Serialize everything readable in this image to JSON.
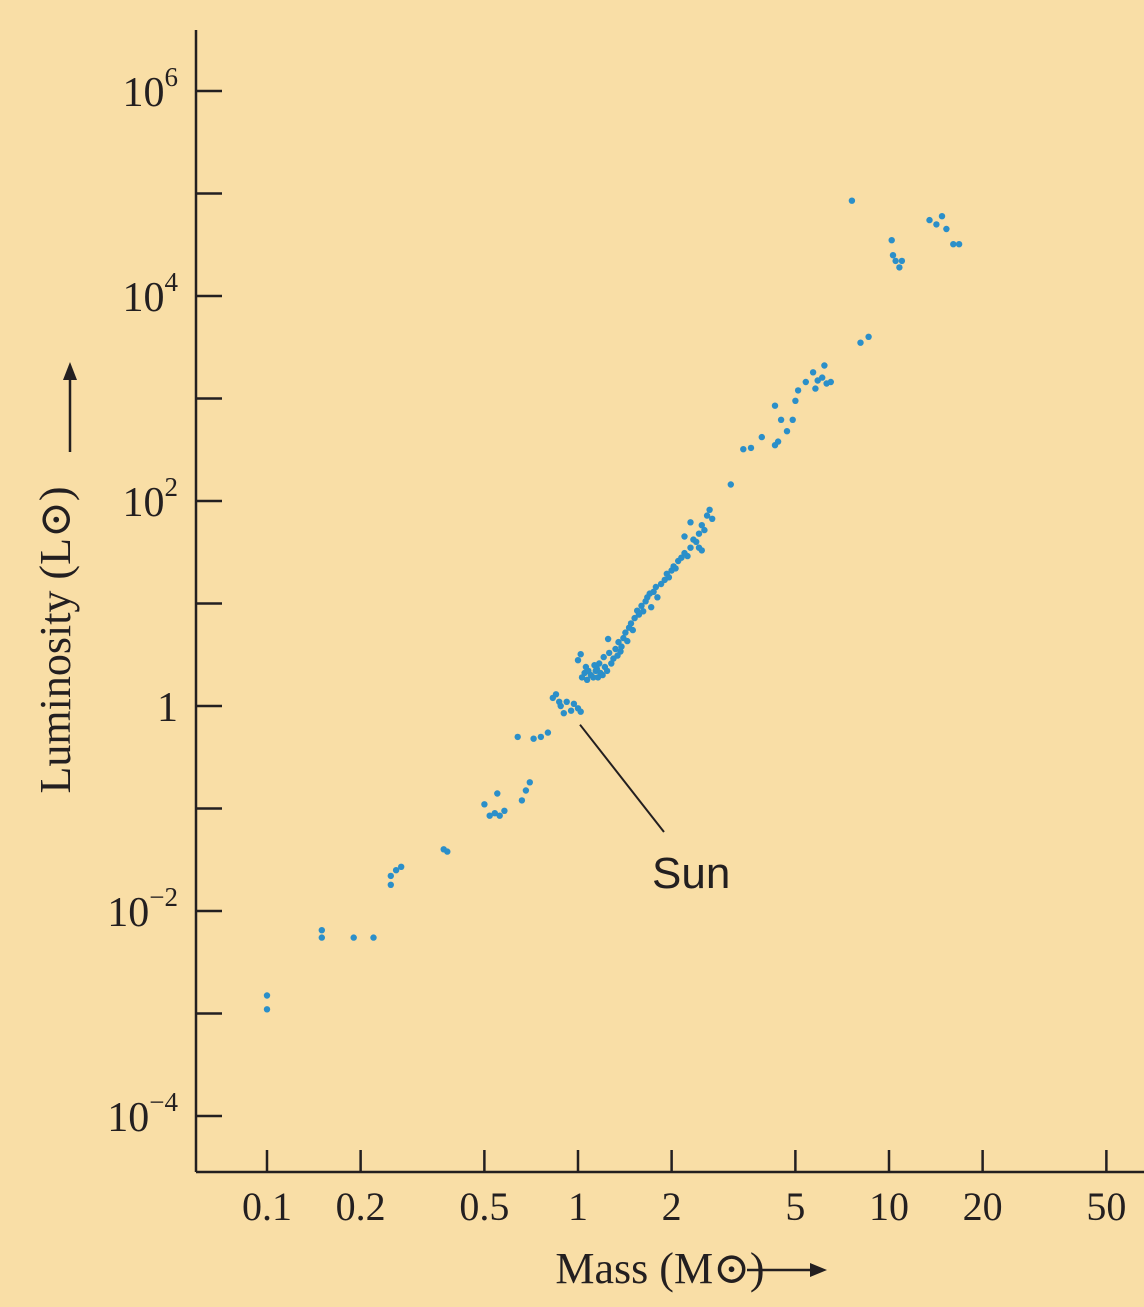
{
  "chart_data": {
    "type": "scatter",
    "title": "",
    "xlabel": "Mass (M⊙)",
    "ylabel": "Luminosity (L⊙)",
    "x_scale": "log",
    "y_scale": "log",
    "xlim": [
      0.066,
      60
    ],
    "ylim": [
      3e-05,
      4000000
    ],
    "grid": false,
    "x_ticks": [
      {
        "value": 0.1,
        "label": "0.1"
      },
      {
        "value": 0.2,
        "label": "0.2"
      },
      {
        "value": 0.5,
        "label": "0.5"
      },
      {
        "value": 1,
        "label": "1"
      },
      {
        "value": 2,
        "label": "2"
      },
      {
        "value": 5,
        "label": "5"
      },
      {
        "value": 10,
        "label": "10"
      },
      {
        "value": 20,
        "label": "20"
      },
      {
        "value": 50,
        "label": "50"
      }
    ],
    "y_ticks": [
      {
        "value": 0.0001,
        "base": "10",
        "exp": "−4"
      },
      {
        "value": 0.001,
        "base": "",
        "exp": ""
      },
      {
        "value": 0.01,
        "base": "10",
        "exp": "−2"
      },
      {
        "value": 0.1,
        "base": "",
        "exp": ""
      },
      {
        "value": 1,
        "base": "1",
        "exp": ""
      },
      {
        "value": 10,
        "base": "",
        "exp": ""
      },
      {
        "value": 100,
        "base": "10",
        "exp": "2"
      },
      {
        "value": 1000,
        "base": "",
        "exp": ""
      },
      {
        "value": 10000,
        "base": "10",
        "exp": "4"
      },
      {
        "value": 100000,
        "base": "",
        "exp": ""
      },
      {
        "value": 1000000,
        "base": "10",
        "exp": "6"
      }
    ],
    "annotation": {
      "text": "Sun",
      "x": 1.0,
      "y": 0.9
    },
    "colors": {
      "background": "#f9dea6",
      "point": "#2b8fc9",
      "axis": "#231f20"
    },
    "points": [
      [
        0.1,
        0.0015
      ],
      [
        0.1,
        0.0011
      ],
      [
        0.15,
        0.0065
      ],
      [
        0.15,
        0.0055
      ],
      [
        0.19,
        0.0055
      ],
      [
        0.22,
        0.0055
      ],
      [
        0.25,
        0.018
      ],
      [
        0.26,
        0.025
      ],
      [
        0.25,
        0.022
      ],
      [
        0.27,
        0.027
      ],
      [
        0.37,
        0.04
      ],
      [
        0.38,
        0.038
      ],
      [
        0.5,
        0.11
      ],
      [
        0.52,
        0.085
      ],
      [
        0.54,
        0.09
      ],
      [
        0.56,
        0.085
      ],
      [
        0.58,
        0.095
      ],
      [
        0.55,
        0.14
      ],
      [
        0.66,
        0.12
      ],
      [
        0.68,
        0.15
      ],
      [
        0.7,
        0.18
      ],
      [
        0.64,
        0.5
      ],
      [
        0.72,
        0.48
      ],
      [
        0.76,
        0.5
      ],
      [
        0.8,
        0.55
      ],
      [
        0.83,
        1.2
      ],
      [
        0.85,
        1.3
      ],
      [
        0.88,
        1.0
      ],
      [
        0.9,
        0.85
      ],
      [
        0.92,
        1.1
      ],
      [
        0.95,
        0.9
      ],
      [
        0.97,
        1.05
      ],
      [
        1.0,
        0.95
      ],
      [
        1.02,
        0.88
      ],
      [
        0.87,
        1.1
      ],
      [
        1.0,
        2.8
      ],
      [
        1.02,
        3.2
      ],
      [
        1.03,
        1.9
      ],
      [
        1.05,
        2.1
      ],
      [
        1.06,
        2.4
      ],
      [
        1.07,
        1.8
      ],
      [
        1.08,
        2.2
      ],
      [
        1.1,
        2.0
      ],
      [
        1.12,
        1.9
      ],
      [
        1.13,
        2.5
      ],
      [
        1.14,
        2.2
      ],
      [
        1.15,
        2.3
      ],
      [
        1.16,
        1.9
      ],
      [
        1.17,
        2.6
      ],
      [
        1.18,
        2.1
      ],
      [
        1.2,
        2.0
      ],
      [
        1.21,
        3.0
      ],
      [
        1.22,
        2.4
      ],
      [
        1.24,
        2.2
      ],
      [
        1.25,
        4.5
      ],
      [
        1.26,
        3.3
      ],
      [
        1.28,
        2.6
      ],
      [
        1.3,
        2.9
      ],
      [
        1.32,
        3.6
      ],
      [
        1.34,
        3.1
      ],
      [
        1.35,
        4.2
      ],
      [
        1.37,
        3.4
      ],
      [
        1.38,
        3.8
      ],
      [
        1.4,
        4.6
      ],
      [
        1.42,
        5.2
      ],
      [
        1.44,
        4.3
      ],
      [
        1.46,
        5.8
      ],
      [
        1.48,
        6.4
      ],
      [
        1.5,
        5.5
      ],
      [
        1.52,
        7.2
      ],
      [
        1.55,
        8.5
      ],
      [
        1.57,
        7.8
      ],
      [
        1.6,
        9.5
      ],
      [
        1.62,
        8.4
      ],
      [
        1.65,
        10.5
      ],
      [
        1.67,
        11.5
      ],
      [
        1.7,
        12.5
      ],
      [
        1.72,
        9.2
      ],
      [
        1.75,
        13.0
      ],
      [
        1.78,
        14.5
      ],
      [
        1.8,
        11.5
      ],
      [
        1.85,
        15.5
      ],
      [
        1.9,
        17.0
      ],
      [
        1.93,
        19.5
      ],
      [
        1.96,
        18.0
      ],
      [
        2.0,
        21.0
      ],
      [
        2.03,
        23.0
      ],
      [
        2.06,
        22.0
      ],
      [
        2.1,
        26.0
      ],
      [
        2.15,
        28.0
      ],
      [
        2.2,
        31.0
      ],
      [
        2.25,
        29.0
      ],
      [
        2.3,
        35.0
      ],
      [
        2.35,
        42.0
      ],
      [
        2.4,
        40.0
      ],
      [
        2.45,
        48.0
      ],
      [
        2.5,
        58.0
      ],
      [
        2.55,
        52.0
      ],
      [
        2.6,
        72.0
      ],
      [
        2.65,
        82.0
      ],
      [
        2.7,
        67.0
      ],
      [
        2.2,
        45.0
      ],
      [
        2.3,
        62.0
      ],
      [
        2.45,
        35.0
      ],
      [
        2.5,
        33.0
      ],
      [
        3.1,
        145.0
      ],
      [
        3.4,
        320.0
      ],
      [
        3.6,
        330.0
      ],
      [
        3.9,
        420.0
      ],
      [
        4.3,
        850.0
      ],
      [
        4.4,
        380.0
      ],
      [
        4.5,
        620.0
      ],
      [
        4.7,
        480.0
      ],
      [
        4.9,
        620.0
      ],
      [
        5.1,
        1200.0
      ],
      [
        5.4,
        1450.0
      ],
      [
        4.3,
        350.0
      ],
      [
        5.0,
        950.0
      ],
      [
        5.7,
        1800.0
      ],
      [
        5.9,
        1500.0
      ],
      [
        6.1,
        1600.0
      ],
      [
        6.3,
        1400.0
      ],
      [
        6.5,
        1450.0
      ],
      [
        6.2,
        2100.0
      ],
      [
        5.8,
        1250.0
      ],
      [
        7.6,
        85000.0
      ],
      [
        8.1,
        3500.0
      ],
      [
        8.6,
        4000.0
      ],
      [
        10.2,
        35000.0
      ],
      [
        10.3,
        25000.0
      ],
      [
        10.5,
        22000.0
      ],
      [
        10.8,
        19000.0
      ],
      [
        11.0,
        22000.0
      ],
      [
        13.5,
        55000.0
      ],
      [
        14.2,
        50000.0
      ],
      [
        14.8,
        60000.0
      ],
      [
        15.3,
        45000.0
      ],
      [
        16.1,
        32000.0
      ],
      [
        16.8,
        32000.0
      ]
    ]
  }
}
